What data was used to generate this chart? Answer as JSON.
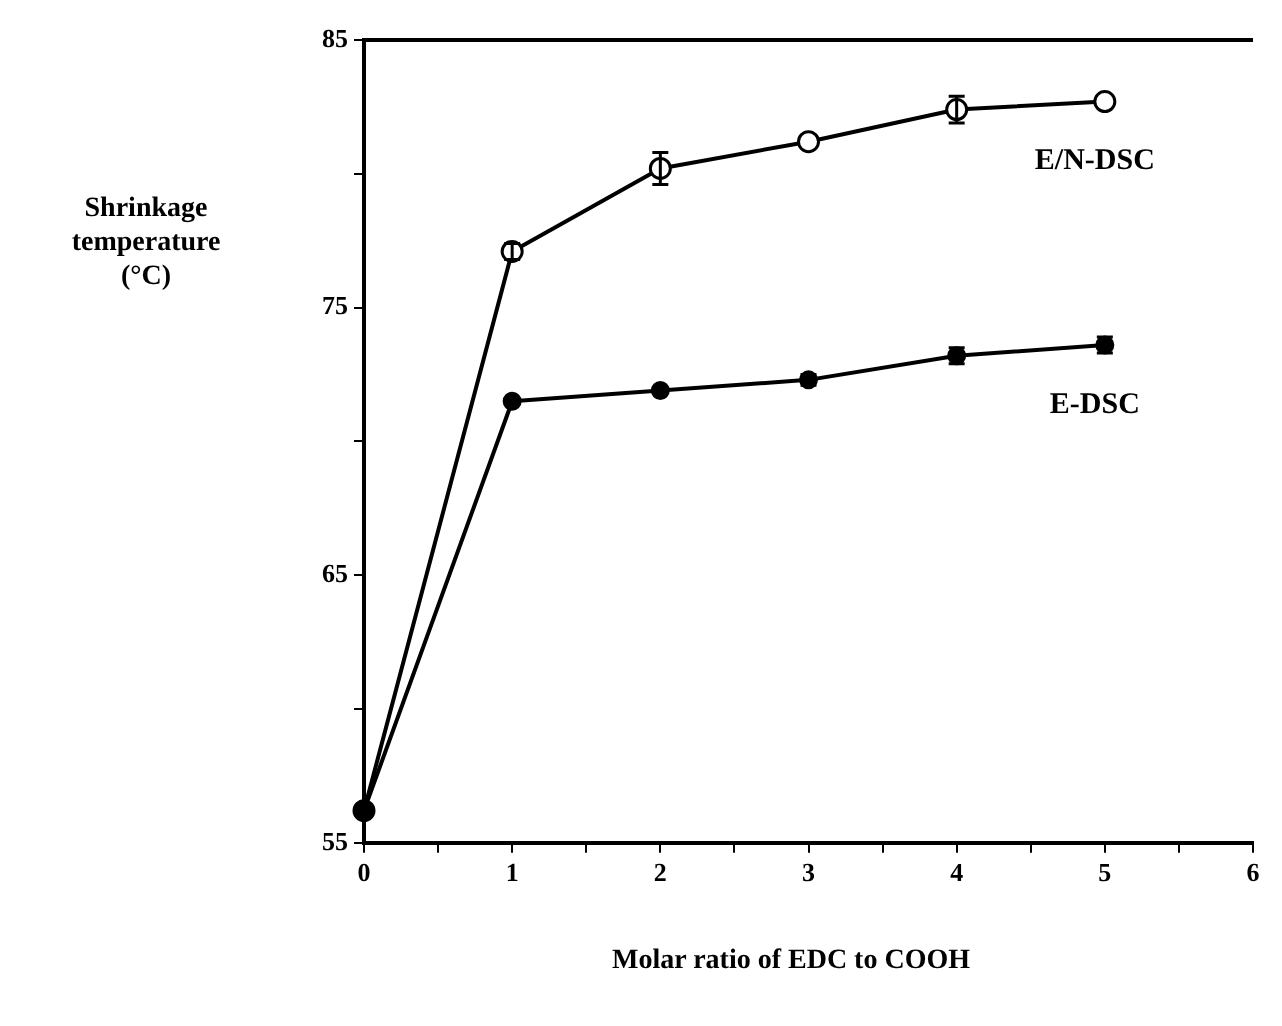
{
  "chart_data": {
    "type": "line",
    "xlabel": "Molar ratio of EDC to COOH",
    "ylabel": "Shrinkage temperature (°C)",
    "xlim": [
      0,
      6
    ],
    "xticks": [
      0,
      {
        "value": 0.5,
        "label": null
      },
      1,
      {
        "value": 1.5,
        "label": null
      },
      2,
      {
        "value": 2.5,
        "label": null
      },
      3,
      {
        "value": 3.5,
        "label": null
      },
      4,
      {
        "value": 4.5,
        "label": null
      },
      5,
      {
        "value": 5.5,
        "label": null
      },
      6
    ],
    "ylim": [
      55,
      85
    ],
    "yticks": [
      55,
      {
        "value": 60,
        "label": null
      },
      65,
      {
        "value": 70,
        "label": null
      },
      75,
      {
        "value": 80,
        "label": null
      },
      85
    ],
    "x": [
      0,
      1,
      2,
      3,
      4,
      5
    ],
    "series": [
      {
        "name": "E/N-DSC",
        "color": "#000000",
        "values": [
          56.2,
          77.1,
          80.2,
          81.2,
          82.4,
          82.7
        ],
        "errors": [
          null,
          0.3,
          0.6,
          null,
          0.5,
          null
        ]
      },
      {
        "name": "E-DSC",
        "color": "#000000",
        "values": [
          56.2,
          71.5,
          71.9,
          72.3,
          73.2,
          73.6
        ],
        "errors": [
          null,
          null,
          null,
          0.2,
          0.3,
          0.3
        ]
      }
    ],
    "grid": false,
    "legend": false,
    "marker": "circle",
    "line_style": "solid"
  }
}
